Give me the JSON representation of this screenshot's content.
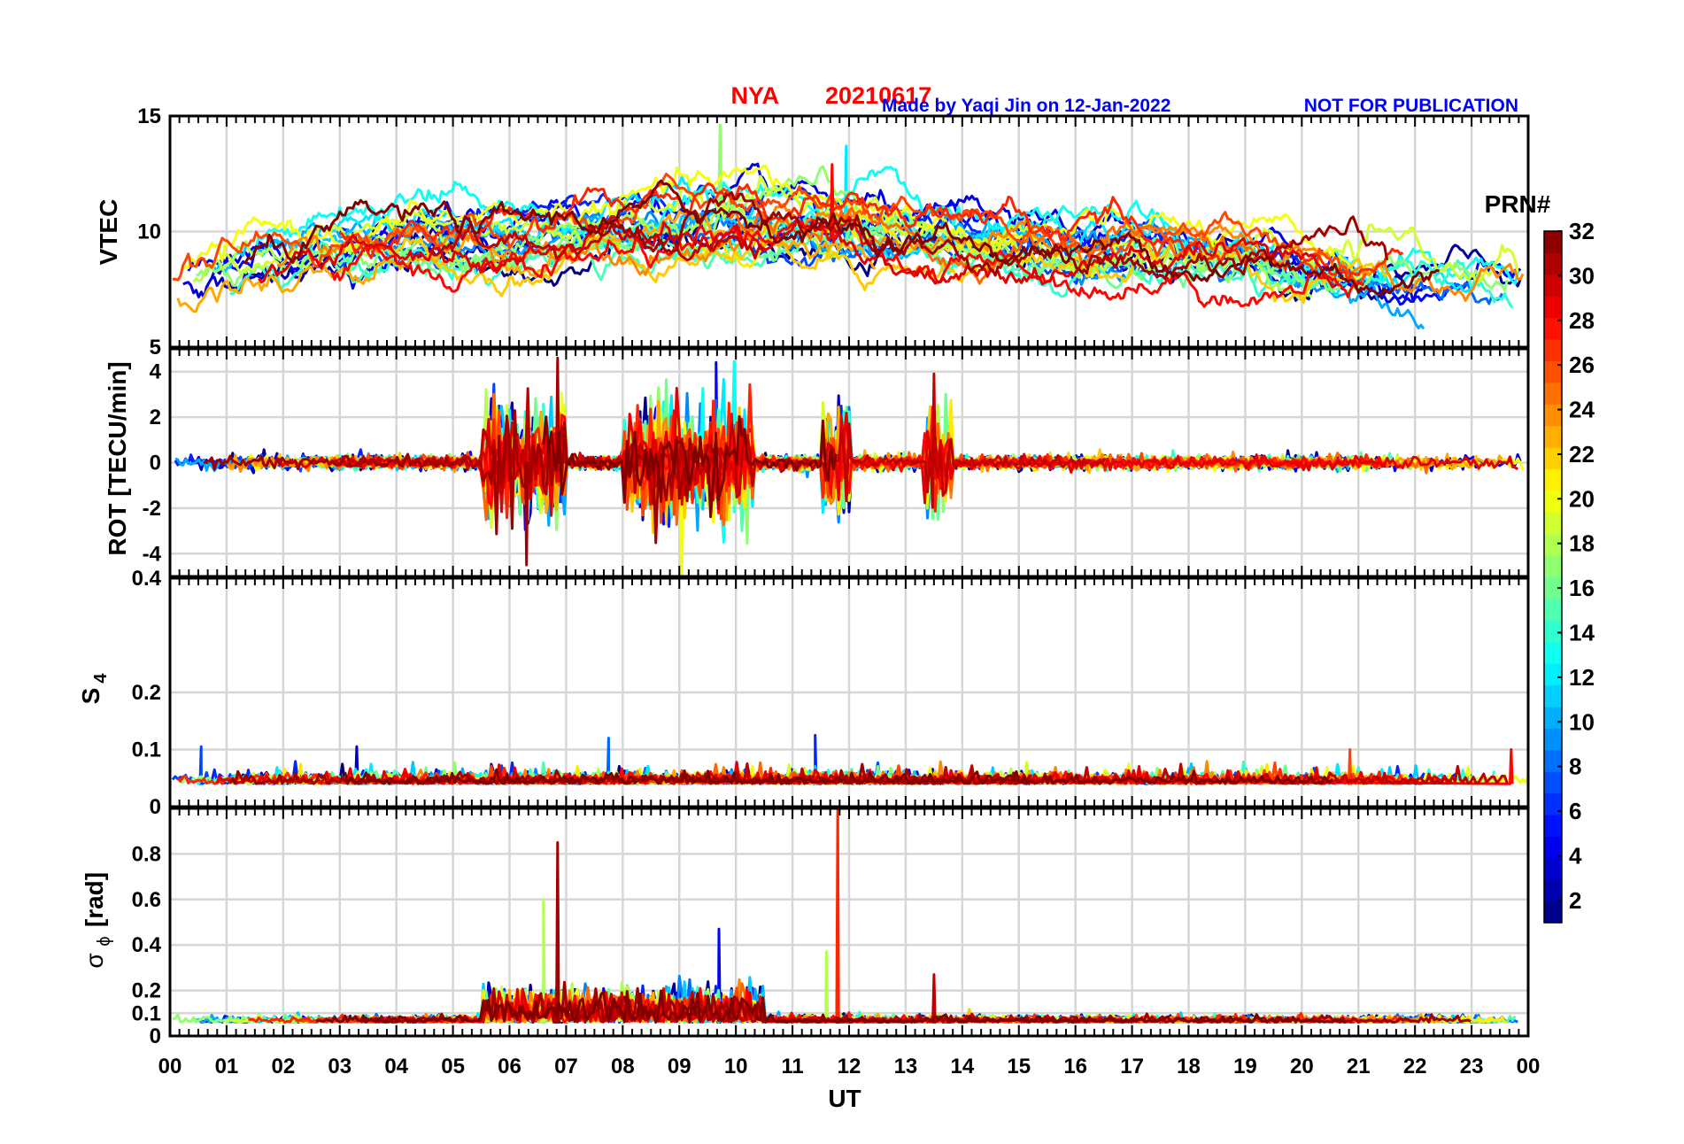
{
  "title": {
    "station": "NYA",
    "date": "20210617",
    "credit": "Made by Yaqi Jin on 12-Jan-2022",
    "notice": "NOT FOR PUBLICATION",
    "title_color": "#ff0000",
    "credit_color": "#0000ff"
  },
  "colorbar": {
    "label": "PRN#",
    "range": [
      1,
      32
    ],
    "ticks": [
      "2",
      "4",
      "6",
      "8",
      "10",
      "12",
      "14",
      "16",
      "18",
      "20",
      "22",
      "24",
      "26",
      "28",
      "30",
      "32"
    ],
    "colormap": "jet"
  },
  "x_axis": {
    "label": "UT",
    "range_hours": [
      0,
      24
    ],
    "ticks": [
      "00",
      "01",
      "02",
      "03",
      "04",
      "05",
      "06",
      "07",
      "08",
      "09",
      "10",
      "11",
      "12",
      "13",
      "14",
      "15",
      "16",
      "17",
      "18",
      "19",
      "20",
      "21",
      "22",
      "23",
      "00"
    ]
  },
  "chart_data": [
    {
      "id": "vtec",
      "type": "line",
      "ylabel": "VTEC",
      "ylim": [
        5,
        15
      ],
      "yticks": [
        "5",
        "10",
        "15"
      ],
      "series_by": "PRN",
      "approximate_envelope": {
        "x_hours": [
          0,
          2,
          4,
          6,
          8,
          10,
          12,
          14,
          16,
          18,
          20,
          22,
          24
        ],
        "mean": [
          7.5,
          8.7,
          9.5,
          9.3,
          10.2,
          10.4,
          10.2,
          9.3,
          9.0,
          9.0,
          8.2,
          7.9,
          7.8
        ],
        "spread": [
          1.2,
          1.2,
          1.0,
          1.4,
          1.3,
          1.5,
          1.2,
          1.2,
          1.0,
          1.0,
          0.5,
          0.5,
          0.8
        ]
      },
      "peaks": [
        {
          "ut": 9.72,
          "value": 14.6,
          "prn": 17
        },
        {
          "ut": 11.95,
          "value": 13.7,
          "prn": 12
        },
        {
          "ut": 11.7,
          "value": 12.9,
          "prn": 28
        }
      ]
    },
    {
      "id": "rot",
      "type": "line",
      "ylabel": "ROT [TECU/min]",
      "ylim": [
        -5,
        5
      ],
      "yticks": [
        "-4",
        "-2",
        "0",
        "2",
        "4"
      ],
      "series_by": "PRN",
      "active_windows_ut": [
        [
          5.5,
          7.0
        ],
        [
          8.0,
          10.3
        ],
        [
          11.5,
          12.0
        ],
        [
          13.3,
          13.8
        ]
      ],
      "extremes": [
        {
          "ut": 6.85,
          "value": 4.6,
          "prn": 31
        },
        {
          "ut": 6.3,
          "value": -4.5,
          "prn": 31
        },
        {
          "ut": 9.65,
          "value": 4.4,
          "prn": 5
        },
        {
          "ut": 13.5,
          "value": 3.9,
          "prn": 30
        }
      ]
    },
    {
      "id": "s4",
      "type": "line",
      "ylabel": "S",
      "ylabel_subscript": "4",
      "ylim": [
        0,
        0.4
      ],
      "yticks": [
        "0",
        "0.1",
        "0.2",
        "0.4"
      ],
      "series_by": "PRN",
      "baseline": 0.04,
      "peaks": [
        {
          "ut": 0.55,
          "value": 0.105,
          "prn": 7
        },
        {
          "ut": 3.3,
          "value": 0.105,
          "prn": 3
        },
        {
          "ut": 7.75,
          "value": 0.12,
          "prn": 8
        },
        {
          "ut": 11.4,
          "value": 0.125,
          "prn": 6
        },
        {
          "ut": 20.85,
          "value": 0.1,
          "prn": 26
        },
        {
          "ut": 23.7,
          "value": 0.1,
          "prn": 28
        }
      ]
    },
    {
      "id": "sigma_phi",
      "type": "line",
      "ylabel": "σ",
      "ylabel_subscript": "ϕ",
      "ylabel_unit": "[rad]",
      "ylim": [
        0,
        1
      ],
      "yticks": [
        "0",
        "0.1",
        "0.2",
        "0.4",
        "0.6",
        "0.8"
      ],
      "series_by": "PRN",
      "baseline": 0.06,
      "peaks": [
        {
          "ut": 6.85,
          "value": 0.85,
          "prn": 31
        },
        {
          "ut": 11.8,
          "value": 1.0,
          "prn": 27
        },
        {
          "ut": 6.6,
          "value": 0.6,
          "prn": 18
        },
        {
          "ut": 9.7,
          "value": 0.47,
          "prn": 5
        },
        {
          "ut": 11.6,
          "value": 0.37,
          "prn": 18
        },
        {
          "ut": 13.5,
          "value": 0.27,
          "prn": 30
        }
      ]
    }
  ]
}
